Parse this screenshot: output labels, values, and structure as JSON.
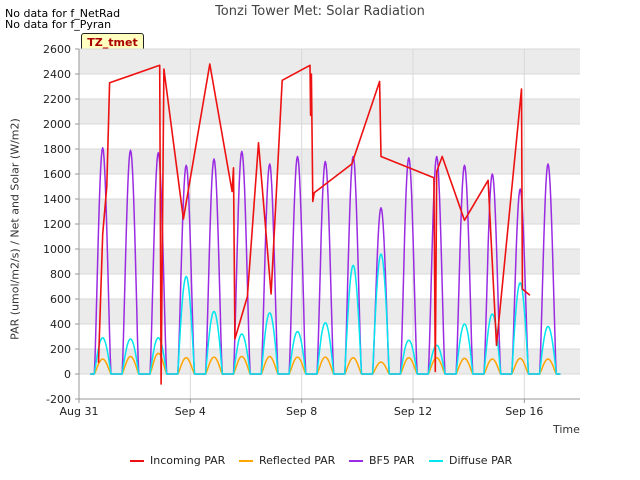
{
  "header": {
    "nodata_1": "No data for f_NetRad",
    "nodata_2": "No data for f_Pyran",
    "tz_label": "TZ_tmet"
  },
  "chart_data": {
    "type": "line",
    "title": "Tonzi Tower Met: Solar Radiation",
    "xlabel": "Time",
    "ylabel": "PAR (umol/m2/s) / Net and Solar (W/m2)",
    "xlim": [
      0,
      18
    ],
    "ylim": [
      -200,
      2600
    ],
    "yticks": [
      -200,
      0,
      200,
      400,
      600,
      800,
      1000,
      1200,
      1400,
      1600,
      1800,
      2000,
      2200,
      2400,
      2600
    ],
    "xticks": [
      {
        "x": 0,
        "label": "Aug 31"
      },
      {
        "x": 4,
        "label": "Sep 4"
      },
      {
        "x": 8,
        "label": "Sep 8"
      },
      {
        "x": 12,
        "label": "Sep 12"
      },
      {
        "x": 16,
        "label": "Sep 16"
      }
    ],
    "grid": true,
    "legend_position": "bottom",
    "colors": {
      "incoming": "#ee1111",
      "reflected": "#ffa500",
      "bf5": "#9a2be2",
      "diffuse": "#00e5ee",
      "band": "#ebebeb"
    },
    "days": [
      {
        "x": 0.85,
        "bf5": 1810,
        "reflected": 120,
        "diffuse": 290
      },
      {
        "x": 1.85,
        "bf5": 1790,
        "reflected": 140,
        "diffuse": 280
      },
      {
        "x": 2.85,
        "bf5": 1770,
        "reflected": 165,
        "diffuse": 290
      },
      {
        "x": 3.85,
        "bf5": 1670,
        "reflected": 130,
        "diffuse": 780
      },
      {
        "x": 4.85,
        "bf5": 1720,
        "reflected": 135,
        "diffuse": 500
      },
      {
        "x": 5.85,
        "bf5": 1780,
        "reflected": 140,
        "diffuse": 320
      },
      {
        "x": 6.85,
        "bf5": 1680,
        "reflected": 140,
        "diffuse": 490
      },
      {
        "x": 7.85,
        "bf5": 1740,
        "reflected": 135,
        "diffuse": 340
      },
      {
        "x": 8.85,
        "bf5": 1700,
        "reflected": 135,
        "diffuse": 410
      },
      {
        "x": 9.85,
        "bf5": 1740,
        "reflected": 130,
        "diffuse": 870
      },
      {
        "x": 10.85,
        "bf5": 1330,
        "reflected": 95,
        "diffuse": 960
      },
      {
        "x": 11.85,
        "bf5": 1730,
        "reflected": 130,
        "diffuse": 270
      },
      {
        "x": 12.85,
        "bf5": 1740,
        "reflected": 130,
        "diffuse": 230
      },
      {
        "x": 13.85,
        "bf5": 1670,
        "reflected": 125,
        "diffuse": 400
      },
      {
        "x": 14.85,
        "bf5": 1600,
        "reflected": 120,
        "diffuse": 480
      },
      {
        "x": 15.85,
        "bf5": 1480,
        "reflected": 125,
        "diffuse": 730
      },
      {
        "x": 16.85,
        "bf5": 1680,
        "reflected": 120,
        "diffuse": 380
      }
    ],
    "series": [
      {
        "name": "Incoming PAR",
        "x": [
          0.7,
          0.85,
          1.0,
          1.1,
          2.9,
          2.95,
          3.05,
          3.75,
          4.7,
          5.5,
          5.55,
          5.6,
          6.05,
          6.45,
          6.9,
          7.3,
          8.3,
          8.32,
          8.35,
          8.4,
          8.45,
          9.8,
          10.8,
          10.85,
          12.75,
          12.8,
          12.85,
          13.05,
          13.85,
          14.7,
          15.0,
          15.9,
          15.93,
          16.2
        ],
        "y": [
          90,
          1120,
          1500,
          2330,
          2470,
          -80,
          2440,
          1240,
          2480,
          1460,
          1650,
          280,
          620,
          1850,
          640,
          2350,
          2470,
          2070,
          2400,
          1380,
          1450,
          1680,
          2340,
          1740,
          1570,
          20,
          1620,
          1740,
          1230,
          1550,
          230,
          2280,
          680,
          630
        ]
      },
      {
        "name": "Reflected PAR"
      },
      {
        "name": "BF5 PAR"
      },
      {
        "name": "Diffuse PAR"
      }
    ]
  }
}
